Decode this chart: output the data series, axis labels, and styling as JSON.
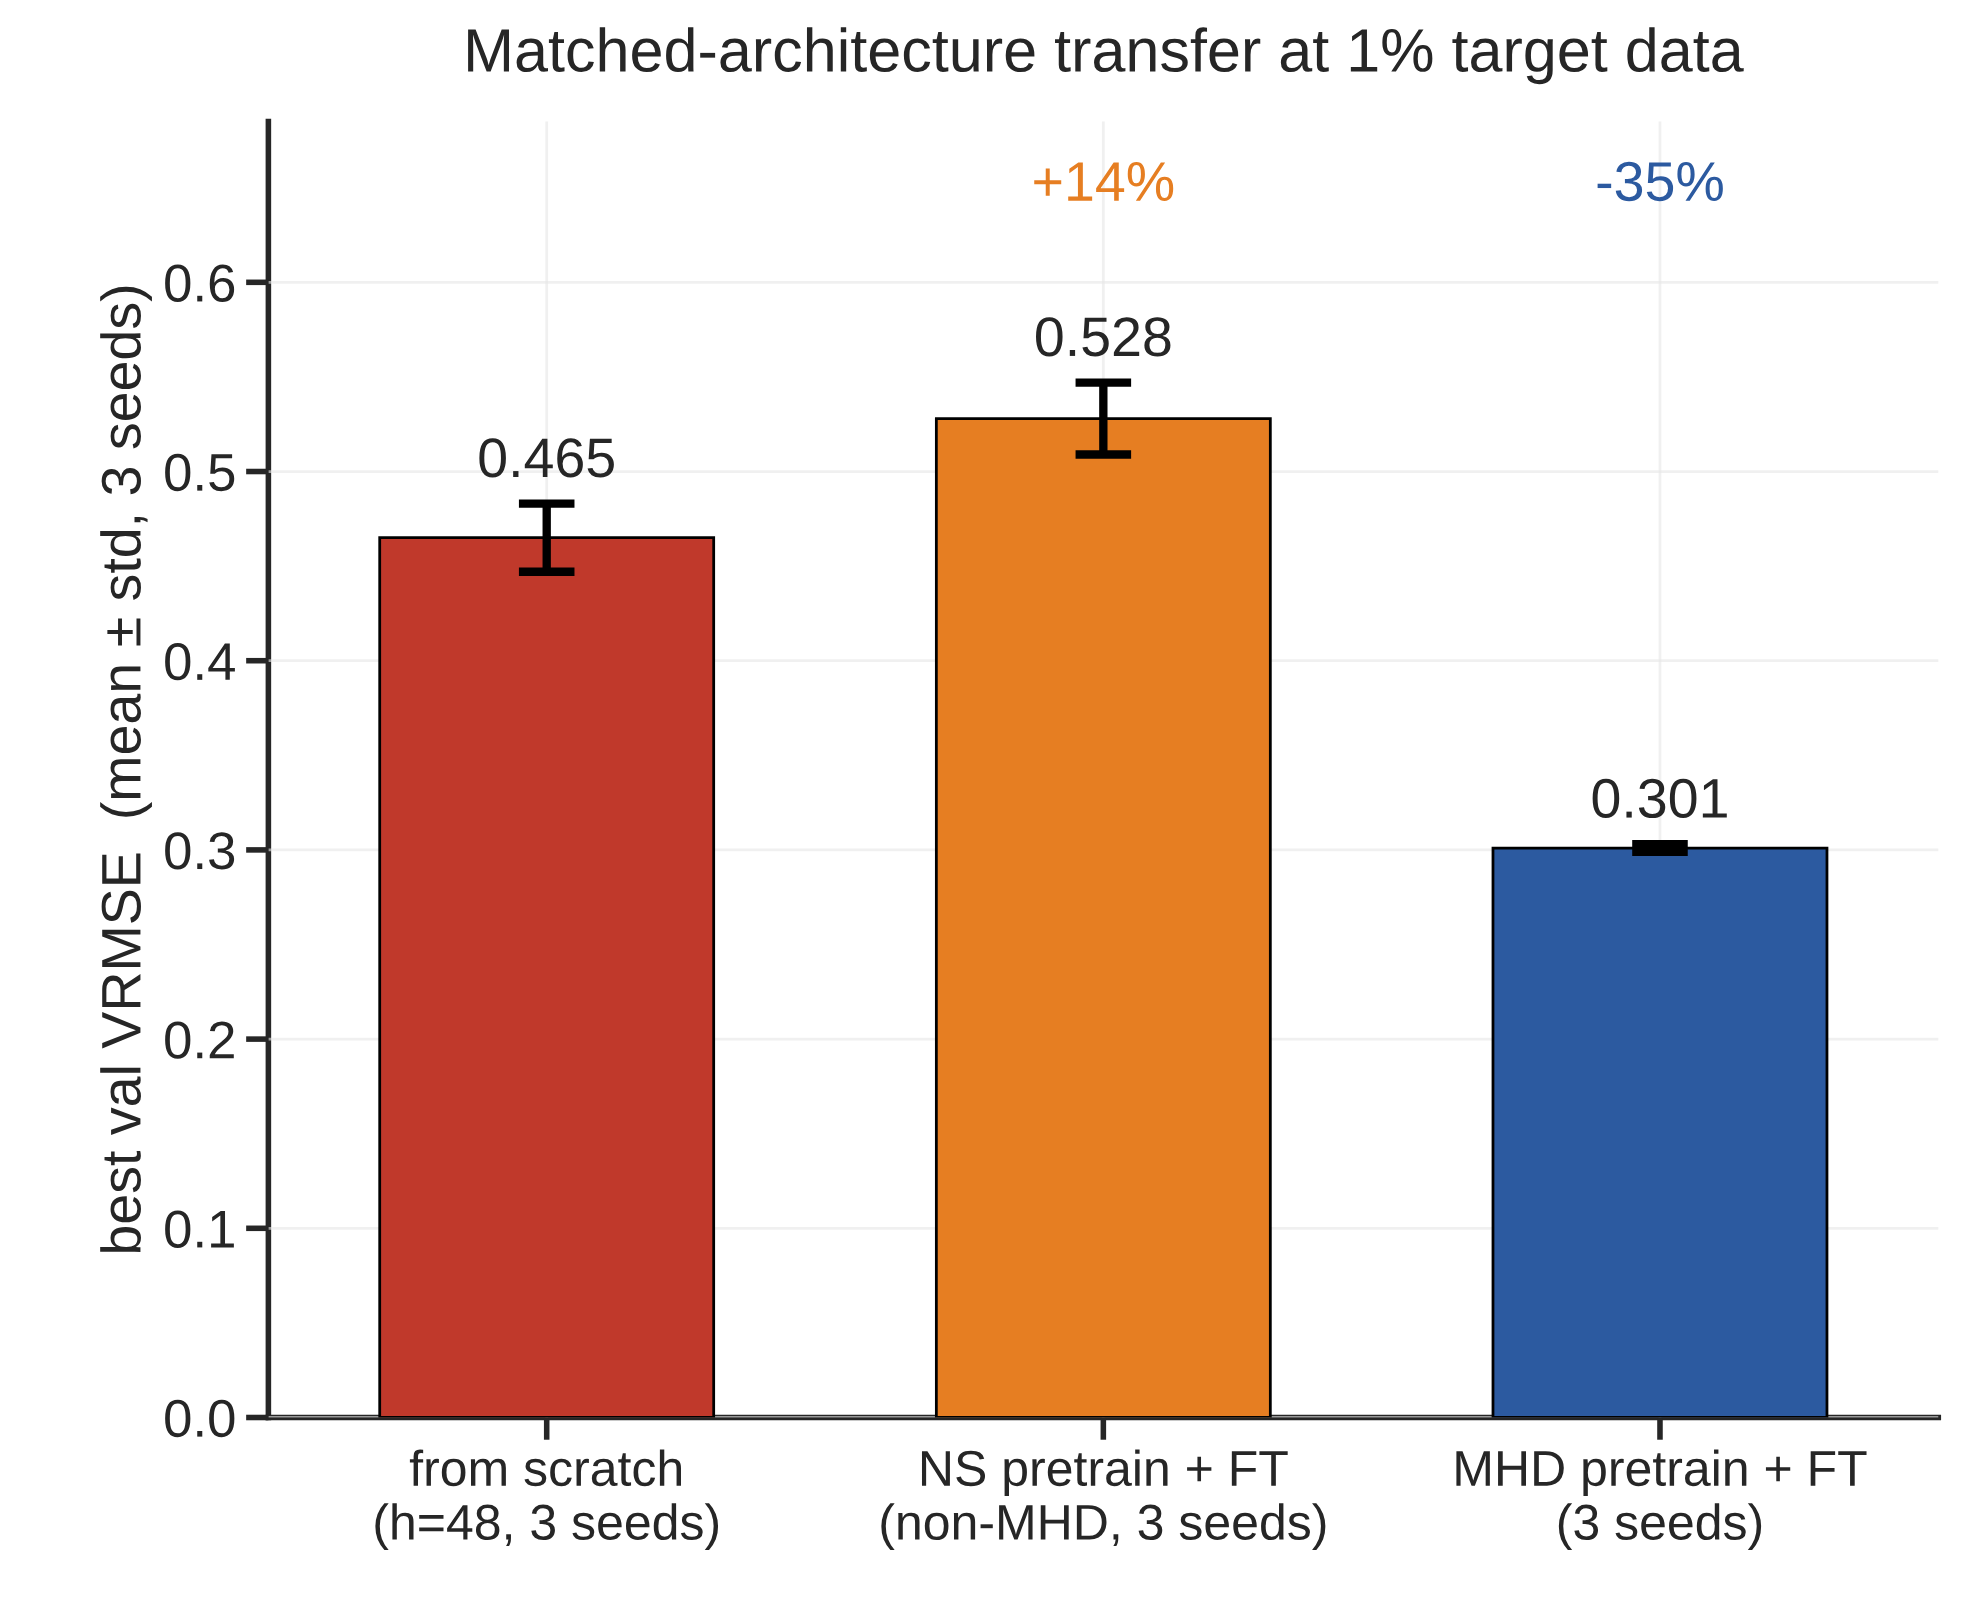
{
  "chart_data": {
    "type": "bar",
    "title": "Matched-architecture transfer at 1% target data",
    "ylabel": "best val VRMSE  (mean ± std, 3 seeds)",
    "categories": [
      "from scratch\n(h=48, 3 seeds)",
      "NS pretrain + FT\n(non-MHD, 3 seeds)",
      "MHD pretrain + FT\n(3 seeds)"
    ],
    "values": [
      0.465,
      0.528,
      0.301
    ],
    "errors": [
      0.018,
      0.019,
      0.002
    ],
    "colors": [
      "#c0392b",
      "#e67e22",
      "#2c5aa0"
    ],
    "data_labels": true,
    "annotations": [
      "+14%",
      "-35%"
    ],
    "ylim": [
      0,
      0.685
    ],
    "yticks": [
      {
        "value": 0,
        "label": "0.0"
      },
      0.1,
      0.2,
      0.3,
      0.4,
      0.5,
      0.6
    ],
    "grid": true
  }
}
